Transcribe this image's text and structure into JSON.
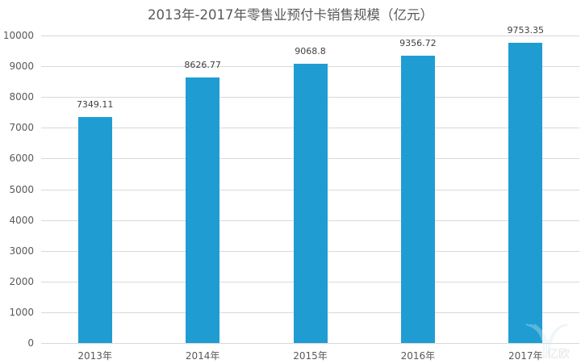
{
  "chart_data": {
    "type": "bar",
    "title": "2013年-2017年零售业预付卡销售规模（亿元）",
    "categories": [
      "2013年",
      "2014年",
      "2015年",
      "2016年",
      "2017年"
    ],
    "values": [
      7349.11,
      8626.77,
      9068.8,
      9356.72,
      9753.35
    ],
    "value_labels": [
      "7349.11",
      "8626.77",
      "9068.8",
      "9356.72",
      "9753.35"
    ],
    "xlabel": "",
    "ylabel": "",
    "ylim": [
      0,
      10000
    ],
    "yticks": [
      0,
      1000,
      2000,
      3000,
      4000,
      5000,
      6000,
      7000,
      8000,
      9000,
      10000
    ],
    "ytick_labels": [
      "0",
      "1000",
      "2000",
      "3000",
      "4000",
      "5000",
      "6000",
      "7000",
      "8000",
      "9000",
      "10000"
    ],
    "grid": true,
    "legend": null,
    "bar_color": "#1f9dd3"
  },
  "watermark": {
    "text": "亿欧"
  }
}
